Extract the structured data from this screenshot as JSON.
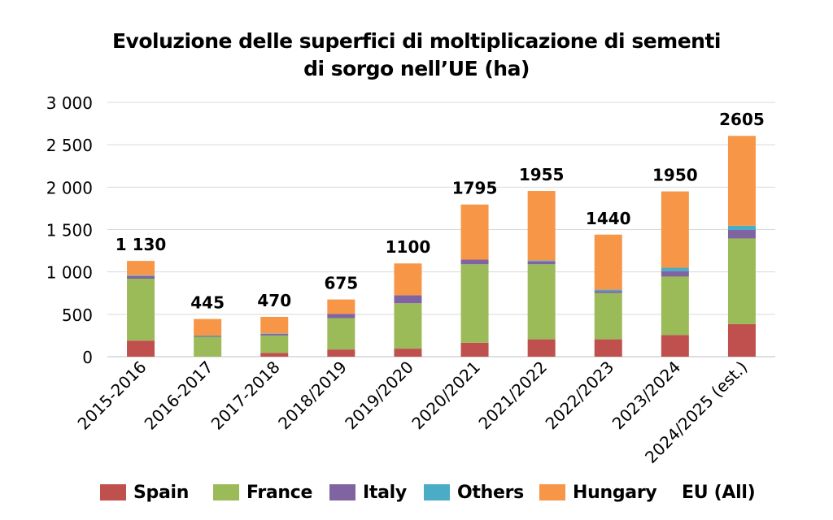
{
  "chart_data": {
    "type": "bar",
    "stacked": true,
    "title_line1": "Evoluzione delle superfici di moltiplicazione di sementi",
    "title_line2": "di sorgo nell’UE (ha)",
    "categories": [
      "2015-2016",
      "2016-2017",
      "2017-2018",
      "2018/2019",
      "2019/2020",
      "2020/2021",
      "2021/2022",
      "2022/2023",
      "2023/2024",
      "2024/2025 (est.)"
    ],
    "series": [
      {
        "name": "Spain",
        "color": "#c0504d",
        "values": [
          190,
          0,
          45,
          85,
          95,
          165,
          205,
          205,
          255,
          385
        ]
      },
      {
        "name": "France",
        "color": "#9bbb59",
        "values": [
          730,
          235,
          205,
          370,
          535,
          925,
          885,
          545,
          690,
          1010
        ]
      },
      {
        "name": "Italy",
        "color": "#8064a2",
        "values": [
          30,
          10,
          20,
          50,
          95,
          55,
          35,
          25,
          65,
          100
        ]
      },
      {
        "name": "Others",
        "color": "#4bacc6",
        "values": [
          10,
          5,
          5,
          0,
          0,
          0,
          10,
          15,
          40,
          50
        ]
      },
      {
        "name": "Hungary",
        "color": "#f79646",
        "values": [
          170,
          195,
          195,
          170,
          375,
          650,
          820,
          650,
          900,
          1060
        ]
      }
    ],
    "totals_series_name": "EU (All)",
    "totals": [
      "1 130",
      "445",
      "470",
      "675",
      "1100",
      "1795",
      "1955",
      "1440",
      "1950",
      "2605"
    ],
    "ylim": [
      0,
      3000
    ],
    "yticks": [
      0,
      500,
      1000,
      1500,
      2000,
      2500,
      3000
    ],
    "ytick_labels": [
      "0",
      "500",
      "1 000",
      "1 500",
      "2 000",
      "2 500",
      "3 000"
    ],
    "xlabel": "",
    "ylabel": "",
    "grid": true,
    "legend_position": "bottom"
  }
}
